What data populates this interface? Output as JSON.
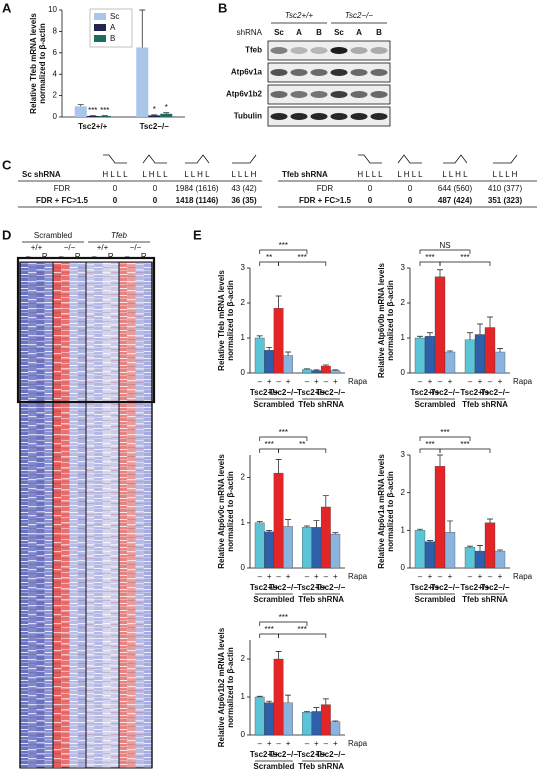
{
  "panel_labels": [
    "A",
    "B",
    "C",
    "D",
    "E"
  ],
  "chart_data": [
    {
      "type": "grouped-bar",
      "ylabel": [
        "Relative Tfeb mRNA levels",
        "normalized to β-actin"
      ],
      "categories": [
        "Tsc2+/+",
        "Tsc2−/−"
      ],
      "series": [
        {
          "name": "Sc",
          "color": "#a9c6e8",
          "values": [
            1.0,
            6.5
          ],
          "errors": [
            0.15,
            3.5
          ]
        },
        {
          "name": "A",
          "color": "#1d2550",
          "values": [
            0.1,
            0.15
          ],
          "errors": [
            0.02,
            0.05
          ],
          "stars": [
            "***",
            "*"
          ]
        },
        {
          "name": "B",
          "color": "#1f6b5e",
          "values": [
            0.1,
            0.3
          ],
          "errors": [
            0.02,
            0.1
          ],
          "stars": [
            "***",
            "*"
          ]
        }
      ],
      "ylim": [
        0,
        10
      ],
      "yticks": [
        0,
        2,
        4,
        6,
        8,
        10
      ]
    },
    {
      "type": "bar",
      "ylabel": [
        "Relative Tfeb mRNA levels",
        "normalized to β-actin"
      ],
      "categories": [
        "–",
        "+",
        "–",
        "+",
        "–",
        "+",
        "–",
        "+"
      ],
      "values": [
        1.0,
        0.65,
        1.85,
        0.5,
        0.1,
        0.07,
        0.2,
        0.07
      ],
      "errors": [
        0.06,
        0.08,
        0.35,
        0.1,
        0.02,
        0.02,
        0.03,
        0.02
      ],
      "colors": [
        "#5bc4d6",
        "#2f5fa8",
        "#e42528",
        "#8ab3dd",
        "#5bc4d6",
        "#2f5fa8",
        "#e42528",
        "#8ab3dd"
      ],
      "genotypes": [
        "Tsc2+/+",
        "Tsc2−/−",
        "Tsc2+/+",
        "Tsc2−/−"
      ],
      "groups": [
        "Scrambled",
        "Tfeb shRNA"
      ],
      "treatment_label": "Rapa",
      "annotations": [
        "***",
        "**",
        "***"
      ],
      "ylim": [
        0,
        3
      ],
      "yticks": [
        0,
        1,
        2,
        3
      ]
    },
    {
      "type": "bar",
      "ylabel": [
        "Relative Atp6v0b mRNA levels",
        "normalized to β-actin"
      ],
      "categories": [
        "–",
        "+",
        "–",
        "+",
        "–",
        "+",
        "–",
        "+"
      ],
      "values": [
        1.0,
        1.05,
        2.75,
        0.6,
        0.95,
        1.1,
        1.3,
        0.6
      ],
      "errors": [
        0.05,
        0.1,
        0.2,
        0.03,
        0.2,
        0.3,
        0.3,
        0.1
      ],
      "colors": [
        "#5bc4d6",
        "#2f5fa8",
        "#e42528",
        "#8ab3dd",
        "#5bc4d6",
        "#2f5fa8",
        "#e42528",
        "#8ab3dd"
      ],
      "genotypes": [
        "Tsc2+/+",
        "Tsc2−/−",
        "Tsc2+/+",
        "Tsc2−/−"
      ],
      "groups": [
        "Scrambled",
        "Tfeb shRNA"
      ],
      "treatment_label": "Rapa",
      "annotations": [
        "NS",
        "***",
        "***"
      ],
      "ylim": [
        0,
        3
      ],
      "yticks": [
        0,
        1,
        2,
        3
      ]
    },
    {
      "type": "bar",
      "ylabel": [
        "Relative Atp6v0c mRNA levels",
        "normalized to β-actin"
      ],
      "categories": [
        "–",
        "+",
        "–",
        "+",
        "–",
        "+",
        "–",
        "+"
      ],
      "values": [
        1.0,
        0.8,
        2.1,
        0.92,
        0.9,
        0.9,
        1.35,
        0.75
      ],
      "errors": [
        0.03,
        0.03,
        0.3,
        0.15,
        0.03,
        0.15,
        0.25,
        0.03
      ],
      "colors": [
        "#5bc4d6",
        "#2f5fa8",
        "#e42528",
        "#8ab3dd",
        "#5bc4d6",
        "#2f5fa8",
        "#e42528",
        "#8ab3dd"
      ],
      "genotypes": [
        "Tsc2+/+",
        "Tsc2−/−",
        "Tsc2+/+",
        "Tsc2−/−"
      ],
      "groups": [
        "Scrambled",
        "Tfeb shRNA"
      ],
      "treatment_label": "Rapa",
      "annotations": [
        "***",
        "***",
        "**"
      ],
      "ylim": [
        0,
        2.5
      ],
      "yticks": [
        0,
        1,
        2
      ]
    },
    {
      "type": "bar",
      "ylabel": [
        "Relative Atp6v1a mRNA levels",
        "normalized to β-actin"
      ],
      "categories": [
        "–",
        "+",
        "–",
        "+",
        "–",
        "+",
        "–",
        "+"
      ],
      "values": [
        1.0,
        0.7,
        2.7,
        0.95,
        0.55,
        0.45,
        1.2,
        0.45
      ],
      "errors": [
        0.03,
        0.03,
        0.3,
        0.3,
        0.03,
        0.15,
        0.1,
        0.03
      ],
      "colors": [
        "#5bc4d6",
        "#2f5fa8",
        "#e42528",
        "#8ab3dd",
        "#5bc4d6",
        "#2f5fa8",
        "#e42528",
        "#8ab3dd"
      ],
      "genotypes": [
        "Tsc2+/+",
        "Tsc2−/−",
        "Tsc2+/+",
        "Tsc2−/−"
      ],
      "groups": [
        "Scrambled",
        "Tfeb shRNA"
      ],
      "treatment_label": "Rapa",
      "annotations": [
        "***",
        "***",
        "***"
      ],
      "ylim": [
        0,
        3
      ],
      "yticks": [
        0,
        1,
        2,
        3
      ]
    },
    {
      "type": "bar",
      "ylabel": [
        "Relative Atp6v1b2 mRNA levels",
        "normalized to β-actin"
      ],
      "categories": [
        "–",
        "+",
        "–",
        "+",
        "–",
        "+",
        "–",
        "+"
      ],
      "values": [
        1.0,
        0.85,
        2.0,
        0.85,
        0.6,
        0.62,
        0.8,
        0.35
      ],
      "errors": [
        0.02,
        0.04,
        0.2,
        0.2,
        0.02,
        0.1,
        0.15,
        0.02
      ],
      "colors": [
        "#5bc4d6",
        "#2f5fa8",
        "#e42528",
        "#8ab3dd",
        "#5bc4d6",
        "#2f5fa8",
        "#e42528",
        "#8ab3dd"
      ],
      "genotypes": [
        "Tsc2+/+",
        "Tsc2−/−",
        "Tsc2+/+",
        "Tsc2−/−"
      ],
      "groups": [
        "Scrambled",
        "Tfeb shRNA"
      ],
      "treatment_label": "Rapa",
      "annotations": [
        "***",
        "***",
        "***"
      ],
      "ylim": [
        0,
        2.5
      ],
      "yticks": [
        0,
        1,
        2
      ]
    }
  ],
  "blot": {
    "genotypes": [
      "Tsc2+/+",
      "Tsc2−/−"
    ],
    "shrna_label": "shRNA",
    "lanes": [
      "Sc",
      "A",
      "B",
      "Sc",
      "A",
      "B"
    ],
    "rows": [
      "Tfeb",
      "Atp6v1a",
      "Atp6v1b2",
      "Tubulin"
    ]
  },
  "tables": [
    {
      "header": "Sc shRNA",
      "columns": [
        "H L L L",
        "L H L L",
        "L L H L",
        "L L L H"
      ],
      "rows": [
        {
          "label": "FDR",
          "cells": [
            0,
            0,
            "1984 (1616)",
            "43 (42)"
          ]
        },
        {
          "label": "FDR + FC>1.5",
          "cells": [
            0,
            0,
            "1418 (1146)",
            "36 (35)"
          ]
        }
      ]
    },
    {
      "header": "Tfeb shRNA",
      "columns": [
        "H L L L",
        "L H L L",
        "L L H L",
        "L L L H"
      ],
      "rows": [
        {
          "label": "FDR",
          "cells": [
            0,
            0,
            "644 (560)",
            "410 (377)"
          ]
        },
        {
          "label": "FDR + FC>1.5",
          "cells": [
            0,
            0,
            "487 (424)",
            "351 (323)"
          ]
        }
      ]
    }
  ],
  "heatmap": {
    "groups": [
      "Scrambled",
      "Tfeb"
    ],
    "genotypes": [
      "+/+",
      "−/−",
      "+/+",
      "−/−"
    ],
    "treatments": [
      "–",
      "R",
      "–",
      "R",
      "–",
      "R",
      "–",
      "R"
    ]
  }
}
